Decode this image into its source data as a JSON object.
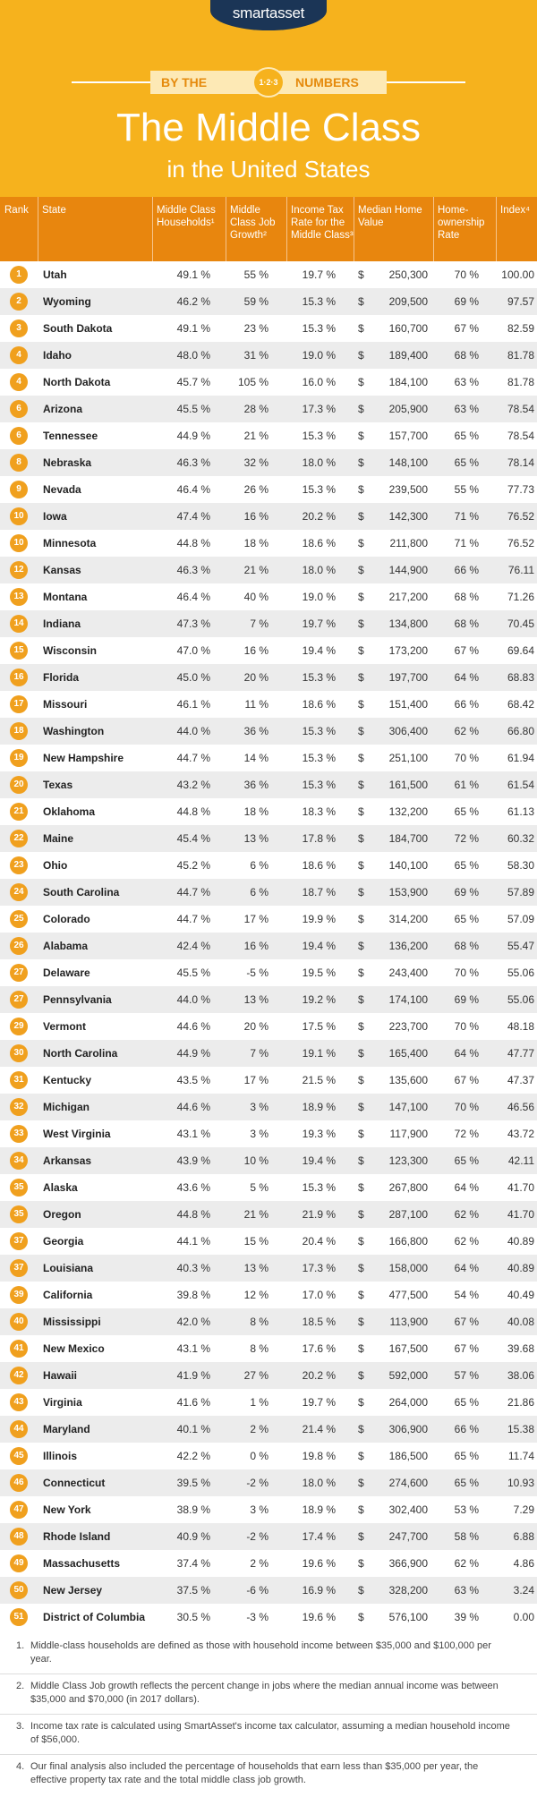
{
  "header": {
    "logo": "smartasset",
    "badge_left": "BY THE",
    "badge_mid": "1·2·3",
    "badge_right": "NUMBERS",
    "title": "The Middle Class",
    "subtitle": "in the United States"
  },
  "table": {
    "columns": [
      "Rank",
      "State",
      "Middle Class Households¹",
      "Middle Class Job Growth²",
      "Income Tax Rate for the Middle Class³",
      "Median Home Value",
      "Home-ownership Rate",
      "Index⁴"
    ],
    "currency": "$",
    "rows": [
      [
        "1",
        "Utah",
        "49.1 %",
        "55 %",
        "19.7 %",
        "250,300",
        "70 %",
        "100.00"
      ],
      [
        "2",
        "Wyoming",
        "46.2 %",
        "59 %",
        "15.3 %",
        "209,500",
        "69 %",
        "97.57"
      ],
      [
        "3",
        "South Dakota",
        "49.1 %",
        "23 %",
        "15.3 %",
        "160,700",
        "67 %",
        "82.59"
      ],
      [
        "4",
        "Idaho",
        "48.0 %",
        "31 %",
        "19.0 %",
        "189,400",
        "68 %",
        "81.78"
      ],
      [
        "4",
        "North Dakota",
        "45.7 %",
        "105 %",
        "16.0 %",
        "184,100",
        "63 %",
        "81.78"
      ],
      [
        "6",
        "Arizona",
        "45.5 %",
        "28 %",
        "17.3 %",
        "205,900",
        "63 %",
        "78.54"
      ],
      [
        "6",
        "Tennessee",
        "44.9 %",
        "21 %",
        "15.3 %",
        "157,700",
        "65 %",
        "78.54"
      ],
      [
        "8",
        "Nebraska",
        "46.3 %",
        "32 %",
        "18.0 %",
        "148,100",
        "65 %",
        "78.14"
      ],
      [
        "9",
        "Nevada",
        "46.4 %",
        "26 %",
        "15.3 %",
        "239,500",
        "55 %",
        "77.73"
      ],
      [
        "10",
        "Iowa",
        "47.4 %",
        "16 %",
        "20.2 %",
        "142,300",
        "71 %",
        "76.52"
      ],
      [
        "10",
        "Minnesota",
        "44.8 %",
        "18 %",
        "18.6 %",
        "211,800",
        "71 %",
        "76.52"
      ],
      [
        "12",
        "Kansas",
        "46.3 %",
        "21 %",
        "18.0 %",
        "144,900",
        "66 %",
        "76.11"
      ],
      [
        "13",
        "Montana",
        "46.4 %",
        "40 %",
        "19.0 %",
        "217,200",
        "68 %",
        "71.26"
      ],
      [
        "14",
        "Indiana",
        "47.3 %",
        "7 %",
        "19.7 %",
        "134,800",
        "68 %",
        "70.45"
      ],
      [
        "15",
        "Wisconsin",
        "47.0 %",
        "16 %",
        "19.4 %",
        "173,200",
        "67 %",
        "69.64"
      ],
      [
        "16",
        "Florida",
        "45.0 %",
        "20 %",
        "15.3 %",
        "197,700",
        "64 %",
        "68.83"
      ],
      [
        "17",
        "Missouri",
        "46.1 %",
        "11 %",
        "18.6 %",
        "151,400",
        "66 %",
        "68.42"
      ],
      [
        "18",
        "Washington",
        "44.0 %",
        "36 %",
        "15.3 %",
        "306,400",
        "62 %",
        "66.80"
      ],
      [
        "19",
        "New Hampshire",
        "44.7 %",
        "14 %",
        "15.3 %",
        "251,100",
        "70 %",
        "61.94"
      ],
      [
        "20",
        "Texas",
        "43.2 %",
        "36 %",
        "15.3 %",
        "161,500",
        "61 %",
        "61.54"
      ],
      [
        "21",
        "Oklahoma",
        "44.8 %",
        "18 %",
        "18.3 %",
        "132,200",
        "65 %",
        "61.13"
      ],
      [
        "22",
        "Maine",
        "45.4 %",
        "13 %",
        "17.8 %",
        "184,700",
        "72 %",
        "60.32"
      ],
      [
        "23",
        "Ohio",
        "45.2 %",
        "6 %",
        "18.6 %",
        "140,100",
        "65 %",
        "58.30"
      ],
      [
        "24",
        "South Carolina",
        "44.7 %",
        "6 %",
        "18.7 %",
        "153,900",
        "69 %",
        "57.89"
      ],
      [
        "25",
        "Colorado",
        "44.7 %",
        "17 %",
        "19.9 %",
        "314,200",
        "65 %",
        "57.09"
      ],
      [
        "26",
        "Alabama",
        "42.4 %",
        "16 %",
        "19.4 %",
        "136,200",
        "68 %",
        "55.47"
      ],
      [
        "27",
        "Delaware",
        "45.5 %",
        "-5 %",
        "19.5 %",
        "243,400",
        "70 %",
        "55.06"
      ],
      [
        "27",
        "Pennsylvania",
        "44.0 %",
        "13 %",
        "19.2 %",
        "174,100",
        "69 %",
        "55.06"
      ],
      [
        "29",
        "Vermont",
        "44.6 %",
        "20 %",
        "17.5 %",
        "223,700",
        "70 %",
        "48.18"
      ],
      [
        "30",
        "North Carolina",
        "44.9 %",
        "7 %",
        "19.1 %",
        "165,400",
        "64 %",
        "47.77"
      ],
      [
        "31",
        "Kentucky",
        "43.5 %",
        "17 %",
        "21.5 %",
        "135,600",
        "67 %",
        "47.37"
      ],
      [
        "32",
        "Michigan",
        "44.6 %",
        "3 %",
        "18.9 %",
        "147,100",
        "70 %",
        "46.56"
      ],
      [
        "33",
        "West Virginia",
        "43.1 %",
        "3 %",
        "19.3 %",
        "117,900",
        "72 %",
        "43.72"
      ],
      [
        "34",
        "Arkansas",
        "43.9 %",
        "10 %",
        "19.4 %",
        "123,300",
        "65 %",
        "42.11"
      ],
      [
        "35",
        "Alaska",
        "43.6 %",
        "5 %",
        "15.3 %",
        "267,800",
        "64 %",
        "41.70"
      ],
      [
        "35",
        "Oregon",
        "44.8 %",
        "21 %",
        "21.9 %",
        "287,100",
        "62 %",
        "41.70"
      ],
      [
        "37",
        "Georgia",
        "44.1 %",
        "15 %",
        "20.4 %",
        "166,800",
        "62 %",
        "40.89"
      ],
      [
        "37",
        "Louisiana",
        "40.3 %",
        "13 %",
        "17.3 %",
        "158,000",
        "64 %",
        "40.89"
      ],
      [
        "39",
        "California",
        "39.8 %",
        "12 %",
        "17.0 %",
        "477,500",
        "54 %",
        "40.49"
      ],
      [
        "40",
        "Mississippi",
        "42.0 %",
        "8 %",
        "18.5 %",
        "113,900",
        "67 %",
        "40.08"
      ],
      [
        "41",
        "New Mexico",
        "43.1 %",
        "8 %",
        "17.6 %",
        "167,500",
        "67 %",
        "39.68"
      ],
      [
        "42",
        "Hawaii",
        "41.9 %",
        "27 %",
        "20.2 %",
        "592,000",
        "57 %",
        "38.06"
      ],
      [
        "43",
        "Virginia",
        "41.6 %",
        "1 %",
        "19.7 %",
        "264,000",
        "65 %",
        "21.86"
      ],
      [
        "44",
        "Maryland",
        "40.1 %",
        "2 %",
        "21.4 %",
        "306,900",
        "66 %",
        "15.38"
      ],
      [
        "45",
        "Illinois",
        "42.2 %",
        "0 %",
        "19.8 %",
        "186,500",
        "65 %",
        "11.74"
      ],
      [
        "46",
        "Connecticut",
        "39.5 %",
        "-2 %",
        "18.0 %",
        "274,600",
        "65 %",
        "10.93"
      ],
      [
        "47",
        "New York",
        "38.9 %",
        "3 %",
        "18.9 %",
        "302,400",
        "53 %",
        "7.29"
      ],
      [
        "48",
        "Rhode Island",
        "40.9 %",
        "-2 %",
        "17.4 %",
        "247,700",
        "58 %",
        "6.88"
      ],
      [
        "49",
        "Massachusetts",
        "37.4 %",
        "2 %",
        "19.6 %",
        "366,900",
        "62 %",
        "4.86"
      ],
      [
        "50",
        "New Jersey",
        "37.5 %",
        "-6 %",
        "16.9 %",
        "328,200",
        "63 %",
        "3.24"
      ],
      [
        "51",
        "District of Columbia",
        "30.5 %",
        "-3 %",
        "19.6 %",
        "576,100",
        "39 %",
        "0.00"
      ]
    ]
  },
  "footnotes": [
    {
      "marker": "1.",
      "text": "Middle-class households are defined as those with household income between $35,000 and $100,000 per year."
    },
    {
      "marker": "2.",
      "text": "Middle Class Job growth reflects the percent change in jobs where the median annual income was between $35,000 and $70,000 (in 2017 dollars)."
    },
    {
      "marker": "3.",
      "text": "Income tax rate is calculated using SmartAsset's income tax calculator, assuming a median household income of $56,000."
    },
    {
      "marker": "4.",
      "text": "Our final analysis also included the percentage of households that earn less than $35,000 per year, the effective property tax rate and the total middle class job growth."
    }
  ]
}
